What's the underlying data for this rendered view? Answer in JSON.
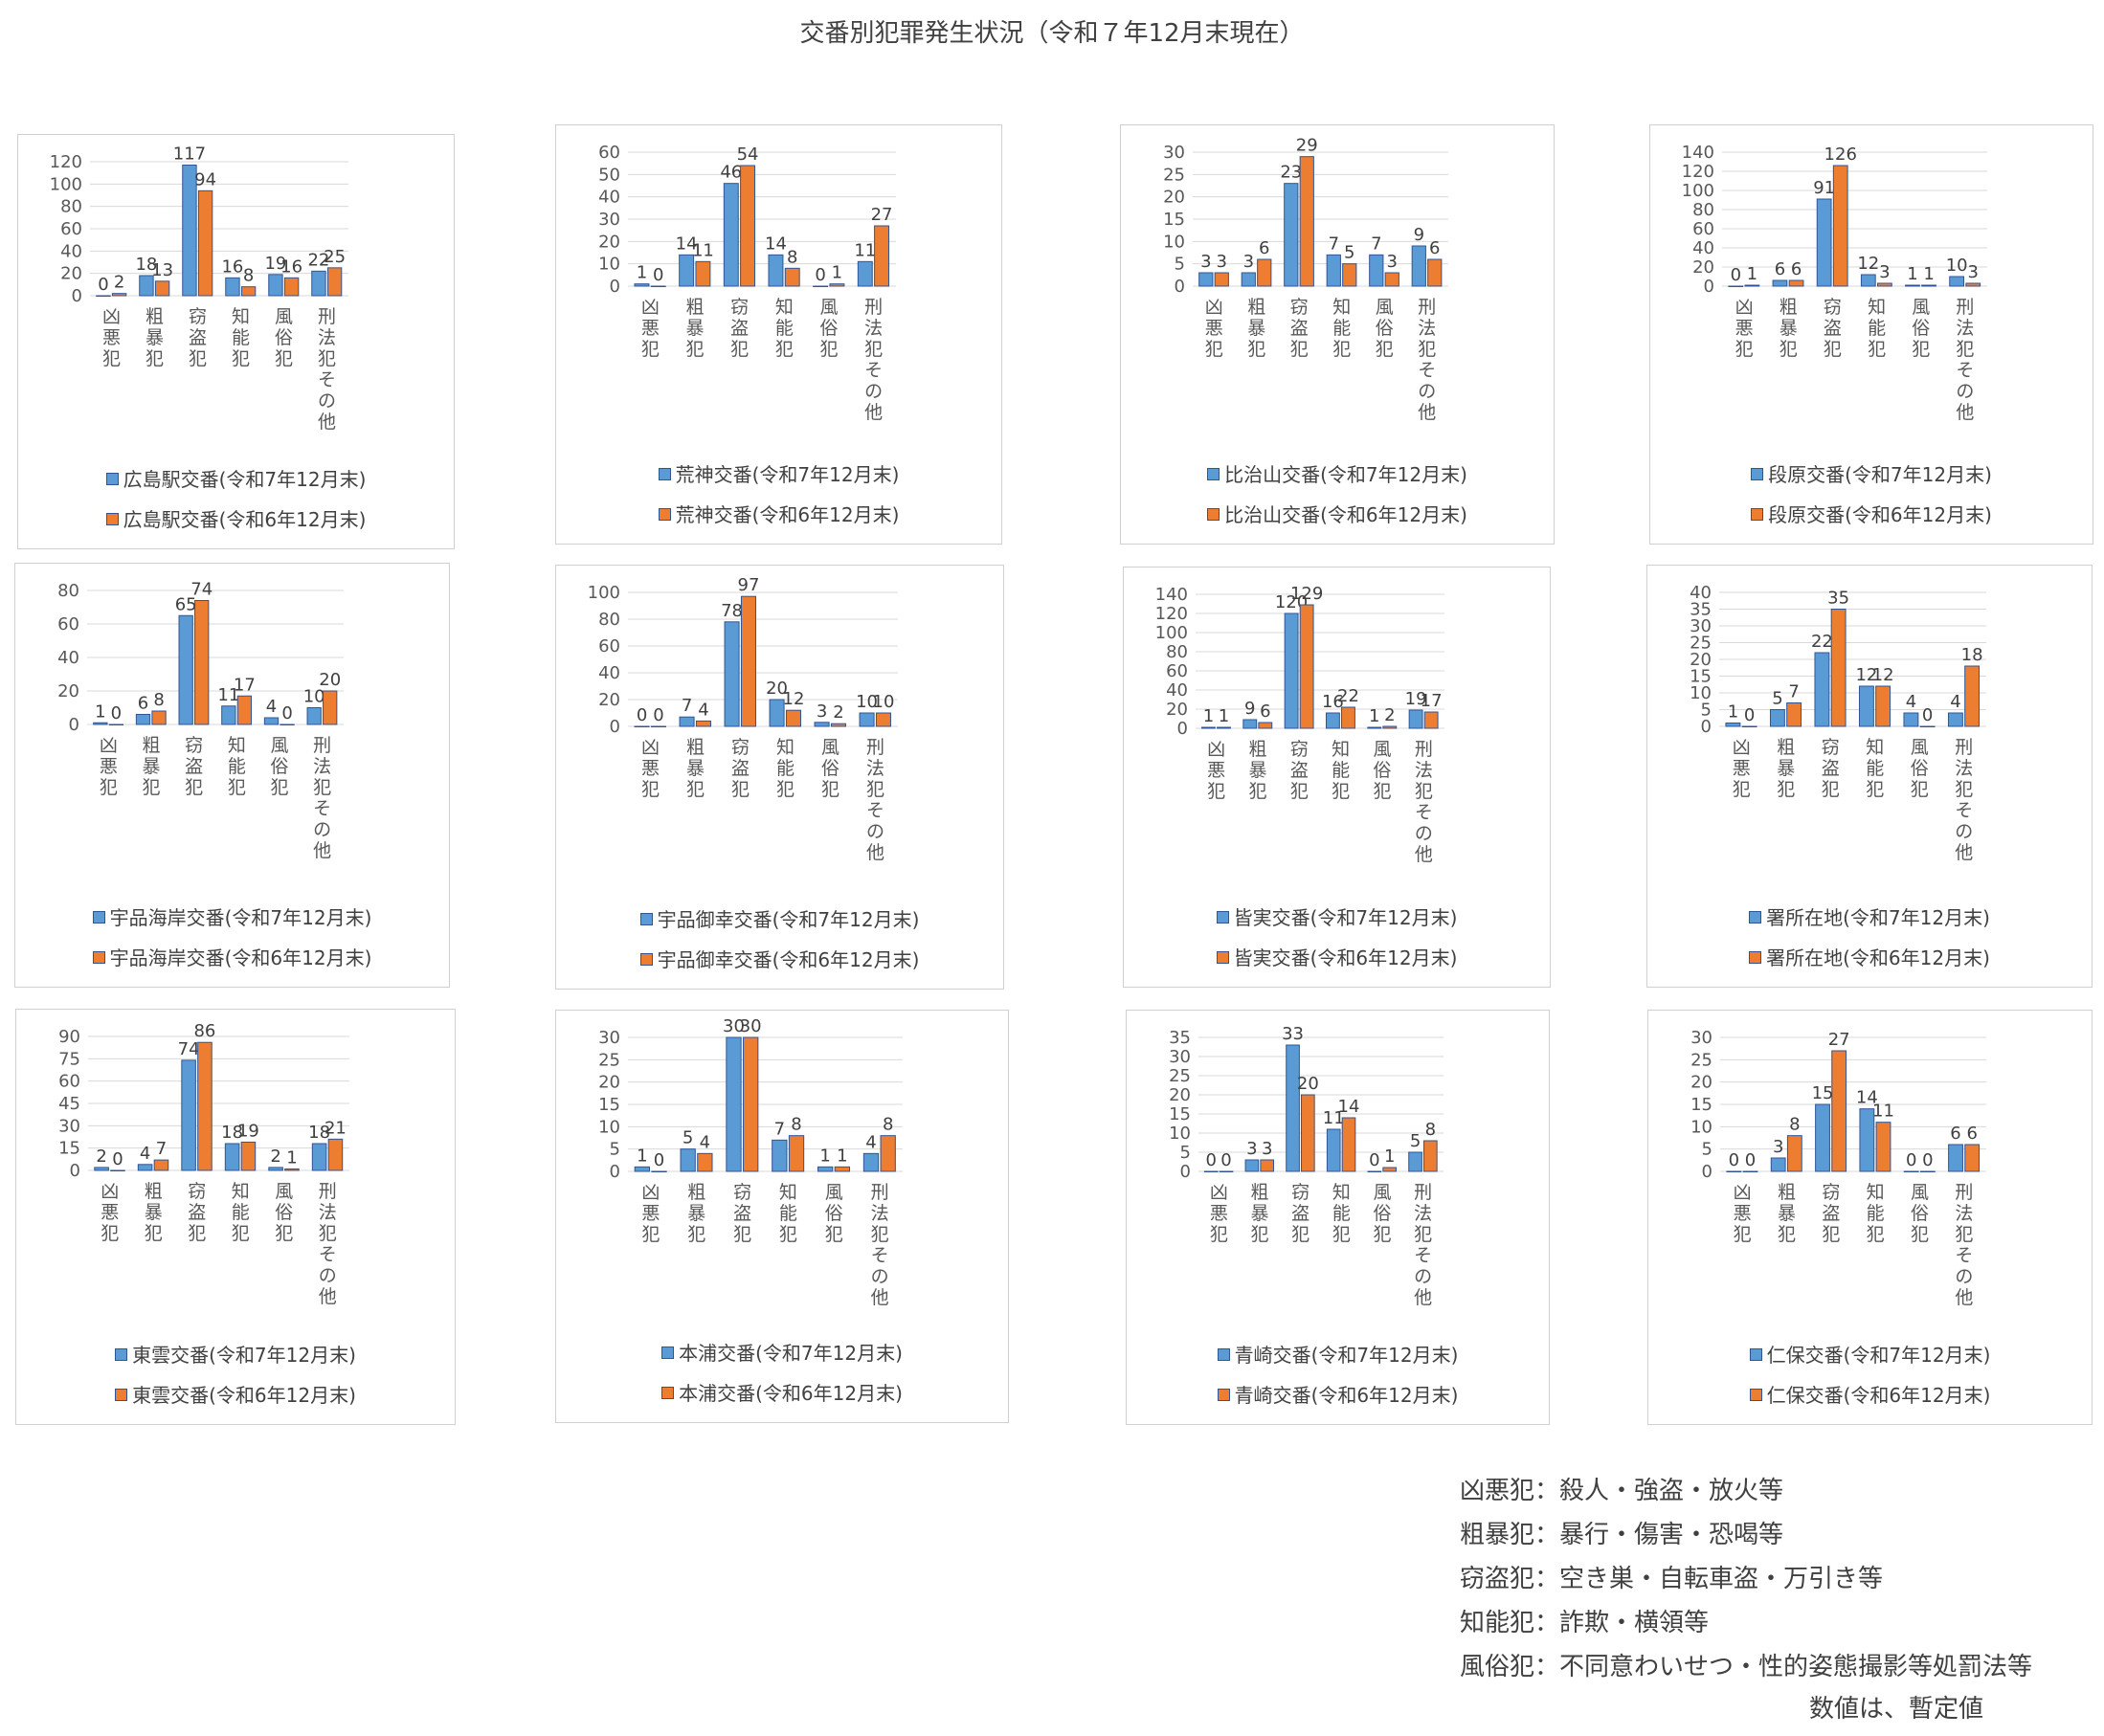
{
  "page_title": "交番別犯罪発生状況（令和７年12月末現在）",
  "colors": {
    "current": "#5b9bd5",
    "previous": "#ed7d31",
    "bar_edge": "#2f5597",
    "grid": "#d9d9d9"
  },
  "chart_data": [
    {
      "type": "bar",
      "title": "",
      "categories": [
        "凶悪犯",
        "粗暴犯",
        "窃盗犯",
        "知能犯",
        "風俗犯",
        "刑法犯その他"
      ],
      "ylim": [
        0,
        120
      ],
      "yticks": [
        0,
        20,
        40,
        60,
        80,
        100,
        120
      ],
      "series": [
        {
          "name": "広島駅交番(令和7年12月末)",
          "values": [
            0,
            18,
            117,
            16,
            19,
            22
          ]
        },
        {
          "name": "広島駅交番(令和6年12月末)",
          "values": [
            2,
            13,
            94,
            8,
            16,
            25
          ]
        }
      ]
    },
    {
      "type": "bar",
      "title": "",
      "categories": [
        "凶悪犯",
        "粗暴犯",
        "窃盗犯",
        "知能犯",
        "風俗犯",
        "刑法犯その他"
      ],
      "ylim": [
        0,
        60
      ],
      "yticks": [
        0,
        10,
        20,
        30,
        40,
        50,
        60
      ],
      "series": [
        {
          "name": "荒神交番(令和7年12月末)",
          "values": [
            1,
            14,
            46,
            14,
            0,
            11
          ]
        },
        {
          "name": "荒神交番(令和6年12月末)",
          "values": [
            0,
            11,
            54,
            8,
            1,
            27
          ]
        }
      ]
    },
    {
      "type": "bar",
      "title": "",
      "categories": [
        "凶悪犯",
        "粗暴犯",
        "窃盗犯",
        "知能犯",
        "風俗犯",
        "刑法犯その他"
      ],
      "ylim": [
        0,
        30
      ],
      "yticks": [
        0,
        5,
        10,
        15,
        20,
        25,
        30
      ],
      "series": [
        {
          "name": "比治山交番(令和7年12月末)",
          "values": [
            3,
            3,
            23,
            7,
            7,
            9
          ]
        },
        {
          "name": "比治山交番(令和6年12月末)",
          "values": [
            3,
            6,
            29,
            5,
            3,
            6
          ]
        }
      ]
    },
    {
      "type": "bar",
      "title": "",
      "categories": [
        "凶悪犯",
        "粗暴犯",
        "窃盗犯",
        "知能犯",
        "風俗犯",
        "刑法犯その他"
      ],
      "ylim": [
        0,
        140
      ],
      "yticks": [
        0,
        20,
        40,
        60,
        80,
        100,
        120,
        140
      ],
      "series": [
        {
          "name": "段原交番(令和7年12月末)",
          "values": [
            0,
            6,
            91,
            12,
            1,
            10
          ]
        },
        {
          "name": "段原交番(令和6年12月末)",
          "values": [
            1,
            6,
            126,
            3,
            1,
            3
          ]
        }
      ]
    },
    {
      "type": "bar",
      "title": "",
      "categories": [
        "凶悪犯",
        "粗暴犯",
        "窃盗犯",
        "知能犯",
        "風俗犯",
        "刑法犯その他"
      ],
      "ylim": [
        0,
        80
      ],
      "yticks": [
        0,
        20,
        40,
        60,
        80
      ],
      "series": [
        {
          "name": "宇品海岸交番(令和7年12月末)",
          "values": [
            1,
            6,
            65,
            11,
            4,
            10
          ]
        },
        {
          "name": "宇品海岸交番(令和6年12月末)",
          "values": [
            0,
            8,
            74,
            17,
            0,
            20
          ]
        }
      ]
    },
    {
      "type": "bar",
      "title": "",
      "categories": [
        "凶悪犯",
        "粗暴犯",
        "窃盗犯",
        "知能犯",
        "風俗犯",
        "刑法犯その他"
      ],
      "ylim": [
        0,
        100
      ],
      "yticks": [
        0,
        20,
        40,
        60,
        80,
        100
      ],
      "series": [
        {
          "name": "宇品御幸交番(令和7年12月末)",
          "values": [
            0,
            7,
            78,
            20,
            3,
            10
          ]
        },
        {
          "name": "宇品御幸交番(令和6年12月末)",
          "values": [
            0,
            4,
            97,
            12,
            2,
            10
          ]
        }
      ]
    },
    {
      "type": "bar",
      "title": "",
      "categories": [
        "凶悪犯",
        "粗暴犯",
        "窃盗犯",
        "知能犯",
        "風俗犯",
        "刑法犯その他"
      ],
      "ylim": [
        0,
        140
      ],
      "yticks": [
        0,
        20,
        40,
        60,
        80,
        100,
        120,
        140
      ],
      "series": [
        {
          "name": "皆実交番(令和7年12月末)",
          "values": [
            1,
            9,
            120,
            16,
            1,
            19
          ]
        },
        {
          "name": "皆実交番(令和6年12月末)",
          "values": [
            1,
            6,
            129,
            22,
            2,
            17
          ]
        }
      ]
    },
    {
      "type": "bar",
      "title": "",
      "categories": [
        "凶悪犯",
        "粗暴犯",
        "窃盗犯",
        "知能犯",
        "風俗犯",
        "刑法犯その他"
      ],
      "ylim": [
        0,
        40
      ],
      "yticks": [
        0,
        5,
        10,
        15,
        20,
        25,
        30,
        35,
        40
      ],
      "series": [
        {
          "name": "署所在地(令和7年12月末)",
          "values": [
            1,
            5,
            22,
            12,
            4,
            4
          ]
        },
        {
          "name": "署所在地(令和6年12月末)",
          "values": [
            0,
            7,
            35,
            12,
            0,
            18
          ]
        }
      ]
    },
    {
      "type": "bar",
      "title": "",
      "categories": [
        "凶悪犯",
        "粗暴犯",
        "窃盗犯",
        "知能犯",
        "風俗犯",
        "刑法犯その他"
      ],
      "ylim": [
        0,
        90
      ],
      "yticks": [
        0,
        15,
        30,
        45,
        60,
        75,
        90
      ],
      "series": [
        {
          "name": "東雲交番(令和7年12月末)",
          "values": [
            2,
            4,
            74,
            18,
            2,
            18
          ]
        },
        {
          "name": "東雲交番(令和6年12月末)",
          "values": [
            0,
            7,
            86,
            19,
            1,
            21
          ]
        }
      ]
    },
    {
      "type": "bar",
      "title": "",
      "categories": [
        "凶悪犯",
        "粗暴犯",
        "窃盗犯",
        "知能犯",
        "風俗犯",
        "刑法犯その他"
      ],
      "ylim": [
        0,
        30
      ],
      "yticks": [
        0,
        5,
        10,
        15,
        20,
        25,
        30
      ],
      "series": [
        {
          "name": "本浦交番(令和7年12月末)",
          "values": [
            1,
            5,
            30,
            7,
            1,
            4
          ]
        },
        {
          "name": "本浦交番(令和6年12月末)",
          "values": [
            0,
            4,
            30,
            8,
            1,
            8
          ]
        }
      ]
    },
    {
      "type": "bar",
      "title": "",
      "categories": [
        "凶悪犯",
        "粗暴犯",
        "窃盗犯",
        "知能犯",
        "風俗犯",
        "刑法犯その他"
      ],
      "ylim": [
        0,
        35
      ],
      "yticks": [
        0,
        5,
        10,
        15,
        20,
        25,
        30,
        35
      ],
      "series": [
        {
          "name": "青崎交番(令和7年12月末)",
          "values": [
            0,
            3,
            33,
            11,
            0,
            5
          ]
        },
        {
          "name": "青崎交番(令和6年12月末)",
          "values": [
            0,
            3,
            20,
            14,
            1,
            8
          ]
        }
      ]
    },
    {
      "type": "bar",
      "title": "",
      "categories": [
        "凶悪犯",
        "粗暴犯",
        "窃盗犯",
        "知能犯",
        "風俗犯",
        "刑法犯その他"
      ],
      "ylim": [
        0,
        30
      ],
      "yticks": [
        0,
        5,
        10,
        15,
        20,
        25,
        30
      ],
      "series": [
        {
          "name": "仁保交番(令和7年12月末)",
          "values": [
            0,
            3,
            15,
            14,
            0,
            6
          ]
        },
        {
          "name": "仁保交番(令和6年12月末)",
          "values": [
            0,
            8,
            27,
            11,
            0,
            6
          ]
        }
      ]
    }
  ],
  "notes": [
    {
      "term": "凶悪犯",
      "desc": "殺人・強盗・放火等"
    },
    {
      "term": "粗暴犯",
      "desc": "暴行・傷害・恐喝等"
    },
    {
      "term": "窃盗犯",
      "desc": "空き巣・自転車盗・万引き等"
    },
    {
      "term": "知能犯",
      "desc": "詐欺・横領等"
    },
    {
      "term": "風俗犯",
      "desc": "不同意わいせつ・性的姿態撮影等処罰法等"
    }
  ],
  "note_separator": "：",
  "footer": "数値は、暫定値"
}
